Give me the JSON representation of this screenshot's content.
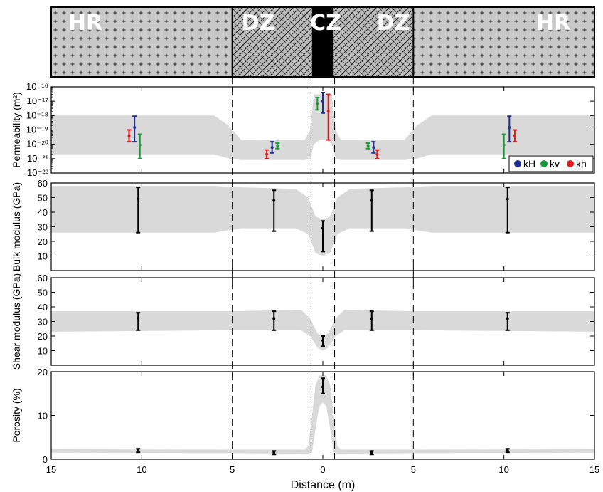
{
  "zones": {
    "labels": [
      "HR",
      "DZ",
      "CZ",
      "DZ",
      "HR"
    ],
    "colors": {
      "hr": "#c8c8c8",
      "dz": "#bebebe",
      "cz": "#000000"
    },
    "extents": [
      [
        -15,
        -5
      ],
      [
        -5,
        -0.6
      ],
      [
        -0.6,
        0.6
      ],
      [
        0.6,
        5
      ],
      [
        5,
        15
      ]
    ]
  },
  "x_axis": {
    "label": "Distance (m)",
    "ticks": [
      -15,
      -10,
      -5,
      0,
      5,
      10,
      15
    ],
    "tick_labels": [
      "15",
      "10",
      "5",
      "0",
      "5",
      "10",
      "15"
    ],
    "range": [
      -15,
      15
    ]
  },
  "boundaries": [
    -5,
    -0.65,
    0.65,
    5
  ],
  "colors": {
    "band": "#d9d9d9",
    "kH": "#1f2f8f",
    "kv": "#1a9a3a",
    "kh": "#e01b1b",
    "errorbar": "#000000"
  },
  "chart_data": [
    {
      "type": "area",
      "name": "permeability",
      "ylabel": "Permeability (m²)",
      "scale": "log",
      "ylim": [
        1e-22,
        1e-16
      ],
      "tick_labels": [
        {
          "value": -16,
          "text": "10⁻¹⁶"
        },
        {
          "value": -17,
          "text": "10⁻¹⁷"
        },
        {
          "value": -18,
          "text": "10⁻¹⁸"
        },
        {
          "value": -19,
          "text": "10⁻¹⁹"
        },
        {
          "value": -20,
          "text": "10⁻²⁰"
        },
        {
          "value": -21,
          "text": "10⁻²¹"
        },
        {
          "value": -22,
          "text": "10⁻²²"
        }
      ],
      "band": {
        "x": [
          -15,
          -6,
          -5.2,
          -4.5,
          -1.0,
          -0.7,
          -0.5,
          -0.2,
          0,
          0.2,
          0.5,
          0.7,
          1.0,
          4.5,
          5.2,
          6,
          15
        ],
        "upper": [
          1e-18,
          1e-18,
          2e-19,
          2e-20,
          2e-20,
          1e-19,
          3e-17,
          3e-17,
          3e-17,
          3e-17,
          3e-17,
          1e-19,
          2e-20,
          2e-20,
          2e-19,
          1e-18,
          1e-18
        ],
        "lower": [
          2e-21,
          2e-21,
          1e-21,
          8e-22,
          8e-22,
          1e-21,
          1e-20,
          2e-20,
          2e-20,
          2e-20,
          1e-20,
          1e-21,
          8e-22,
          8e-22,
          1e-21,
          2e-21,
          2e-21
        ]
      },
      "series": [
        {
          "name": "kH",
          "points": [
            {
              "x": -10.4,
              "y": 1.5e-19,
              "lo": 1.5e-20,
              "hi": 9e-19
            },
            {
              "x": -2.8,
              "y": 6e-21,
              "lo": 2.5e-21,
              "hi": 1.5e-20
            },
            {
              "x": 0,
              "y": 1e-17,
              "lo": 1.5e-18,
              "hi": 4e-17
            },
            {
              "x": 2.8,
              "y": 6e-21,
              "lo": 2.5e-21,
              "hi": 1.5e-20
            },
            {
              "x": 10.3,
              "y": 1.5e-19,
              "lo": 1.5e-20,
              "hi": 9e-19
            }
          ]
        },
        {
          "name": "kv",
          "points": [
            {
              "x": -10.1,
              "y": 9e-21,
              "lo": 1e-21,
              "hi": 5e-20
            },
            {
              "x": -2.5,
              "y": 8e-21,
              "lo": 5e-21,
              "hi": 1.2e-20
            },
            {
              "x": -0.3,
              "y": 7e-18,
              "lo": 2.5e-18,
              "hi": 1.8e-17
            },
            {
              "x": 2.5,
              "y": 8e-21,
              "lo": 5e-21,
              "hi": 1.2e-20
            },
            {
              "x": 10,
              "y": 9e-21,
              "lo": 1e-21,
              "hi": 5e-20
            }
          ]
        },
        {
          "name": "kh",
          "points": [
            {
              "x": -10.7,
              "y": 4e-20,
              "lo": 1.5e-20,
              "hi": 1e-19
            },
            {
              "x": -3.1,
              "y": 2e-21,
              "lo": 1e-21,
              "hi": 4e-21
            },
            {
              "x": 0.3,
              "y": 2e-18,
              "lo": 2e-20,
              "hi": 3e-17
            },
            {
              "x": 3.0,
              "y": 2e-21,
              "lo": 1e-21,
              "hi": 4e-21
            },
            {
              "x": 10.6,
              "y": 4e-20,
              "lo": 1.5e-20,
              "hi": 1e-19
            }
          ]
        }
      ],
      "legend": {
        "placement": "bottom-right",
        "entries": [
          "kH",
          "kv",
          "kh"
        ]
      }
    },
    {
      "type": "area",
      "name": "bulk-modulus",
      "ylabel": "Bulk modulus (GPa)",
      "ylim": [
        0,
        60
      ],
      "ticks": [
        10,
        20,
        30,
        40,
        50,
        60
      ],
      "band": {
        "x": [
          -15,
          -6,
          -4.5,
          -1.5,
          -0.8,
          -0.4,
          0,
          0.4,
          0.8,
          1.5,
          4.5,
          6,
          15
        ],
        "upper": [
          58,
          58,
          57,
          56,
          50,
          37,
          35,
          37,
          50,
          56,
          57,
          58,
          58
        ],
        "lower": [
          26,
          26,
          29,
          29,
          25,
          12,
          10,
          12,
          25,
          29,
          29,
          26,
          26
        ]
      },
      "series": [
        {
          "name": "data",
          "points": [
            {
              "x": -10.2,
              "y": 49,
              "lo": 26,
              "hi": 57
            },
            {
              "x": -2.7,
              "y": 48,
              "lo": 27,
              "hi": 55
            },
            {
              "x": 0,
              "y": 29,
              "lo": 13,
              "hi": 34
            },
            {
              "x": 2.7,
              "y": 48,
              "lo": 27,
              "hi": 55
            },
            {
              "x": 10.2,
              "y": 49,
              "lo": 26,
              "hi": 57
            }
          ]
        }
      ]
    },
    {
      "type": "area",
      "name": "shear-modulus",
      "ylabel": "Shear modulus (GPa)",
      "ylim": [
        0,
        60
      ],
      "ticks": [
        10,
        20,
        30,
        40,
        50,
        60
      ],
      "band": {
        "x": [
          -15,
          -5,
          -1.2,
          -0.7,
          -0.3,
          0,
          0.3,
          0.7,
          1.2,
          5,
          15
        ],
        "upper": [
          37,
          37,
          38,
          32,
          22,
          20,
          22,
          32,
          38,
          37,
          37
        ],
        "lower": [
          23,
          24,
          24,
          20,
          12,
          10,
          12,
          20,
          24,
          24,
          23
        ]
      },
      "series": [
        {
          "name": "data",
          "points": [
            {
              "x": -10.2,
              "y": 32,
              "lo": 24,
              "hi": 36
            },
            {
              "x": -2.7,
              "y": 32,
              "lo": 24,
              "hi": 37
            },
            {
              "x": 0,
              "y": 17,
              "lo": 13,
              "hi": 20
            },
            {
              "x": 2.7,
              "y": 32,
              "lo": 24,
              "hi": 37
            },
            {
              "x": 10.2,
              "y": 32,
              "lo": 24,
              "hi": 36
            }
          ]
        }
      ]
    },
    {
      "type": "area",
      "name": "porosity",
      "ylabel": "Porosity (%)",
      "ylim": [
        0,
        20
      ],
      "ticks": [
        0,
        10,
        20
      ],
      "band": {
        "x": [
          -15,
          -5,
          -1.0,
          -0.8,
          -0.6,
          -0.4,
          -0.2,
          0,
          0.2,
          0.4,
          0.6,
          0.8,
          1.0,
          5,
          15
        ],
        "upper": [
          2.3,
          2.2,
          2.2,
          3,
          10,
          17,
          19,
          19.5,
          19,
          17,
          10,
          3,
          2.2,
          2.2,
          2.3
        ],
        "lower": [
          1.5,
          1.4,
          1.3,
          1.3,
          1.6,
          7,
          12,
          13,
          12,
          7,
          1.6,
          1.3,
          1.3,
          1.4,
          1.5
        ]
      },
      "series": [
        {
          "name": "data",
          "points": [
            {
              "x": -10.2,
              "y": 2.0,
              "lo": 1.6,
              "hi": 2.4
            },
            {
              "x": -2.7,
              "y": 1.5,
              "lo": 1.1,
              "hi": 1.9
            },
            {
              "x": 0,
              "y": 16.5,
              "lo": 15,
              "hi": 18.5
            },
            {
              "x": 2.7,
              "y": 1.5,
              "lo": 1.1,
              "hi": 1.9
            },
            {
              "x": 10.2,
              "y": 2.0,
              "lo": 1.6,
              "hi": 2.4
            }
          ]
        }
      ]
    }
  ]
}
